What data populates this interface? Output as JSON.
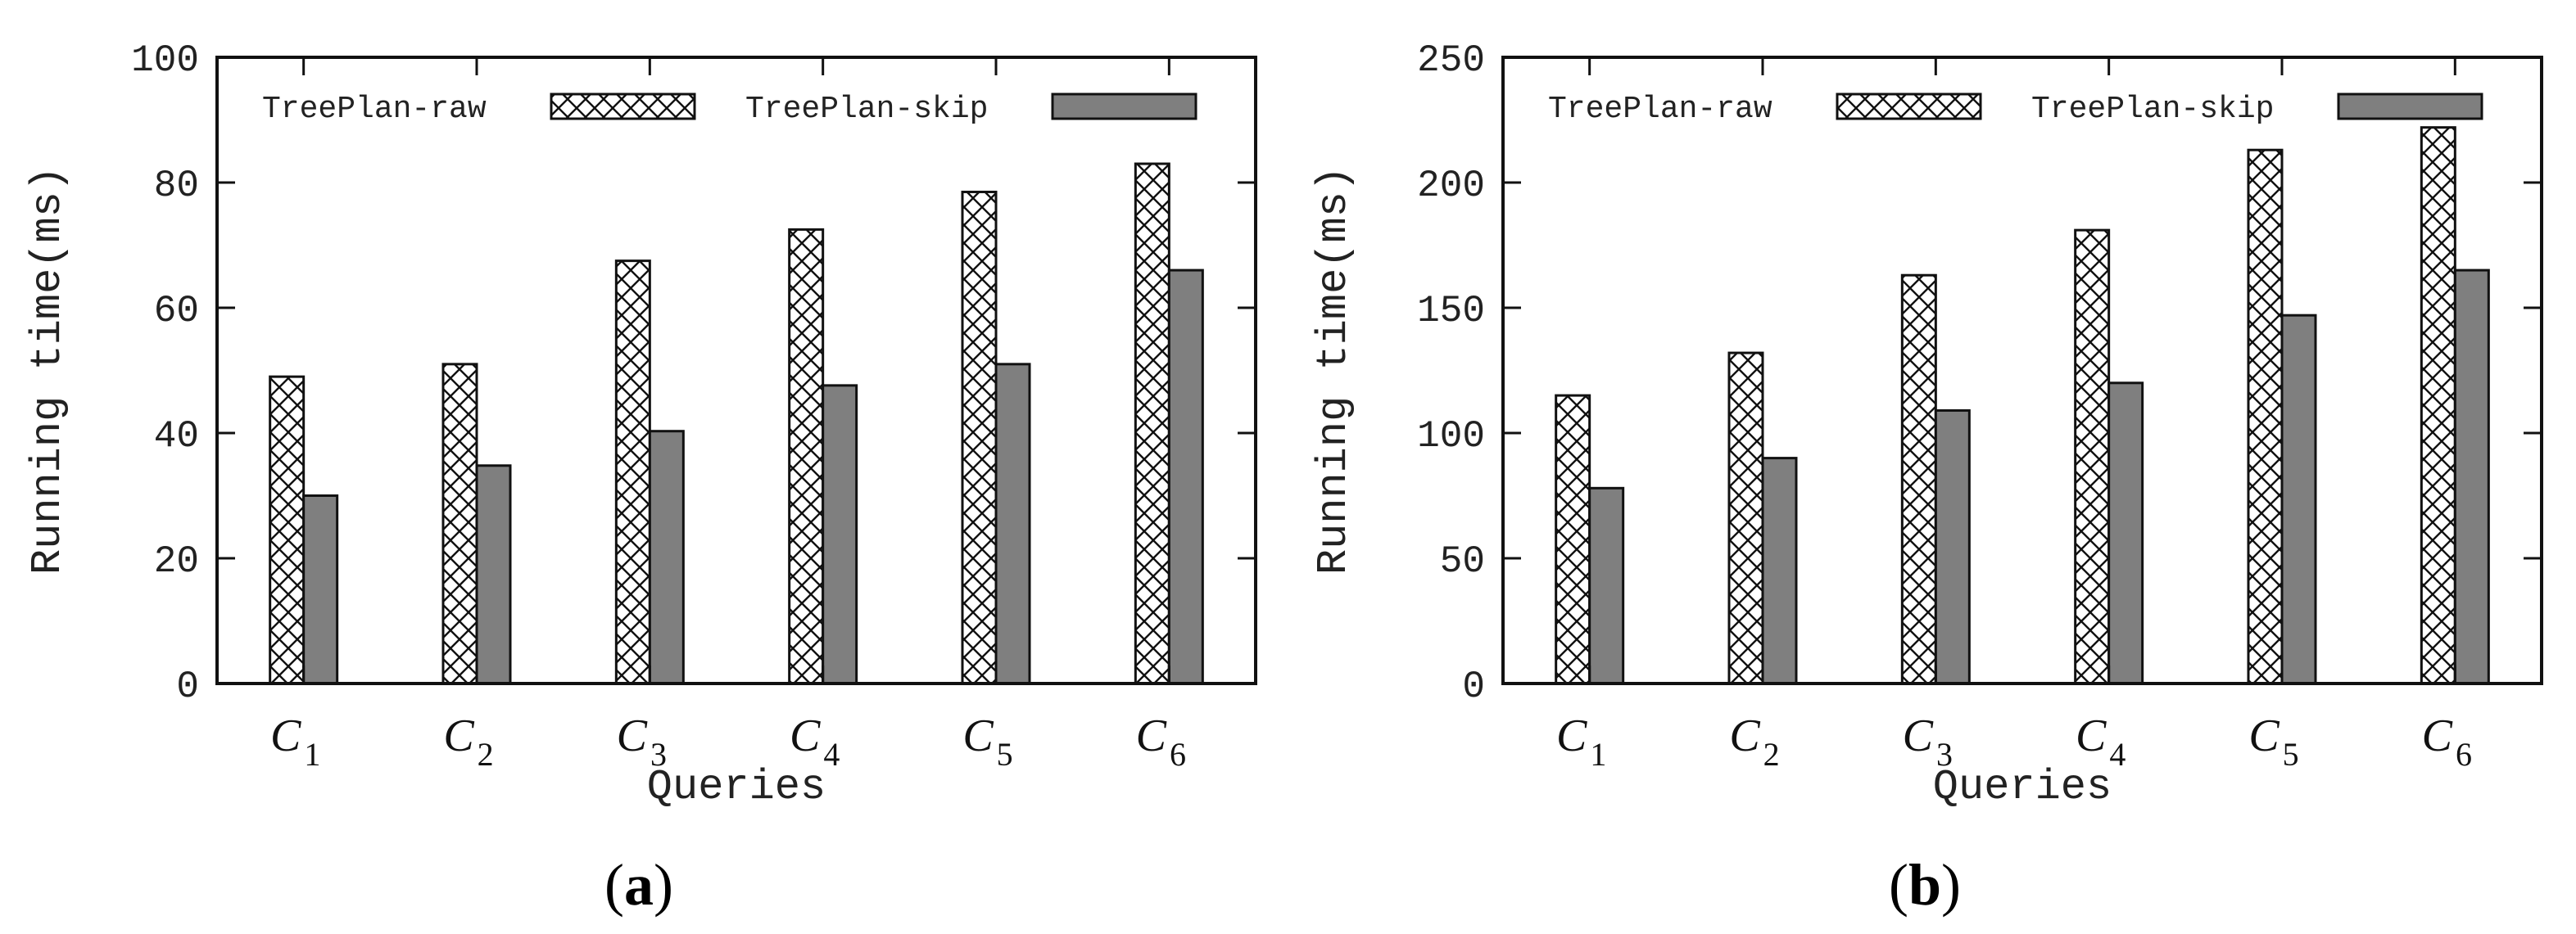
{
  "figure": {
    "panels": [
      "(a)",
      "(b)"
    ]
  },
  "colors": {
    "raw_fill": "#ffffff",
    "raw_hatch": "#111111",
    "skip_fill": "#7f7f7f",
    "axis": "#111111",
    "background": "#ffffff"
  },
  "chart_data": [
    {
      "type": "bar",
      "panel_label": "(a)",
      "panel_letter": "a",
      "title": "",
      "xlabel": "Queries",
      "ylabel": "Running time(ms)",
      "ylim": [
        0,
        100
      ],
      "yticks": [
        0,
        20,
        40,
        60,
        80,
        100
      ],
      "legend_position": "top",
      "categories": [
        {
          "base": "C",
          "sub": "1"
        },
        {
          "base": "C",
          "sub": "2"
        },
        {
          "base": "C",
          "sub": "3"
        },
        {
          "base": "C",
          "sub": "4"
        },
        {
          "base": "C",
          "sub": "5"
        },
        {
          "base": "C",
          "sub": "6"
        }
      ],
      "series": [
        {
          "name": "TreePlan-raw",
          "style": "hatch",
          "values": [
            49,
            51,
            67.5,
            72.5,
            78.5,
            83
          ]
        },
        {
          "name": "TreePlan-skip",
          "style": "solid",
          "values": [
            30,
            34.8,
            40.3,
            47.6,
            51,
            66
          ]
        }
      ]
    },
    {
      "type": "bar",
      "panel_label": "(b)",
      "panel_letter": "b",
      "title": "",
      "xlabel": "Queries",
      "ylabel": "Running time(ms)",
      "ylim": [
        0,
        250
      ],
      "yticks": [
        0,
        50,
        100,
        150,
        200,
        250
      ],
      "legend_position": "top",
      "categories": [
        {
          "base": "C",
          "sub": "1"
        },
        {
          "base": "C",
          "sub": "2"
        },
        {
          "base": "C",
          "sub": "3"
        },
        {
          "base": "C",
          "sub": "4"
        },
        {
          "base": "C",
          "sub": "5"
        },
        {
          "base": "C",
          "sub": "6"
        }
      ],
      "series": [
        {
          "name": "TreePlan-raw",
          "style": "hatch",
          "values": [
            115,
            132,
            163,
            181,
            213,
            222
          ]
        },
        {
          "name": "TreePlan-skip",
          "style": "solid",
          "values": [
            78,
            90,
            109,
            120,
            147,
            165
          ]
        }
      ]
    }
  ]
}
